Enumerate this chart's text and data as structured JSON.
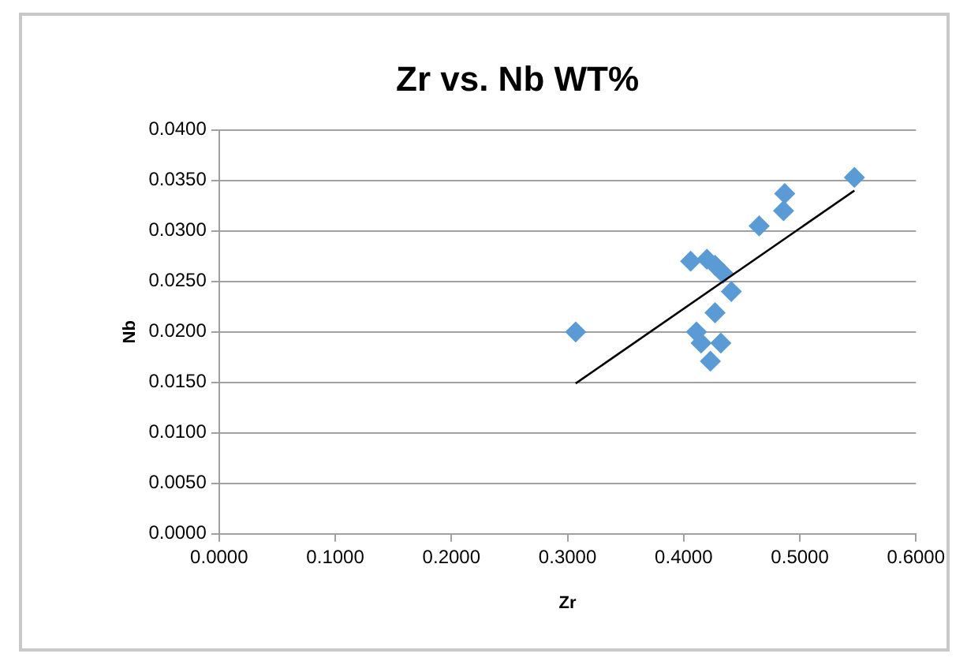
{
  "chart_data": {
    "type": "scatter",
    "title": "Zr vs. Nb WT%",
    "xlabel": "Zr",
    "ylabel": "Nb",
    "xlim": [
      0,
      0.6
    ],
    "xticks": [
      {
        "value": 0,
        "label": "0.0000"
      },
      {
        "value": 0.1,
        "label": "0.1000"
      },
      {
        "value": 0.2,
        "label": "0.2000"
      },
      {
        "value": 0.3,
        "label": "0.3000"
      },
      {
        "value": 0.4,
        "label": "0.4000"
      },
      {
        "value": 0.5,
        "label": "0.5000"
      },
      {
        "value": 0.6,
        "label": "0.6000"
      }
    ],
    "ylim": [
      0,
      0.04
    ],
    "yticks": [
      {
        "value": 0,
        "label": "0.0000"
      },
      {
        "value": 0.005,
        "label": "0.0050"
      },
      {
        "value": 0.01,
        "label": "0.0100"
      },
      {
        "value": 0.015,
        "label": "0.0150"
      },
      {
        "value": 0.02,
        "label": "0.0200"
      },
      {
        "value": 0.025,
        "label": "0.0250"
      },
      {
        "value": 0.03,
        "label": "0.0300"
      },
      {
        "value": 0.035,
        "label": "0.0350"
      },
      {
        "value": 0.04,
        "label": "0.0400"
      }
    ],
    "grid": "y",
    "legend": false,
    "series": [
      {
        "type": "scatter",
        "marker": "diamond",
        "color": "#5b9bd5",
        "x": [
          0.307,
          0.406,
          0.42,
          0.427,
          0.434,
          0.441,
          0.427,
          0.411,
          0.415,
          0.432,
          0.423,
          0.465,
          0.486,
          0.487,
          0.547
        ],
        "values": [
          0.02,
          0.027,
          0.0272,
          0.0266,
          0.0258,
          0.024,
          0.0219,
          0.02,
          0.0189,
          0.0189,
          0.0171,
          0.0305,
          0.032,
          0.0337,
          0.0353
        ]
      },
      {
        "type": "line",
        "marker": "none",
        "color": "#000000",
        "x": [
          0.307,
          0.547
        ],
        "values": [
          0.0149,
          0.034
        ]
      }
    ]
  }
}
